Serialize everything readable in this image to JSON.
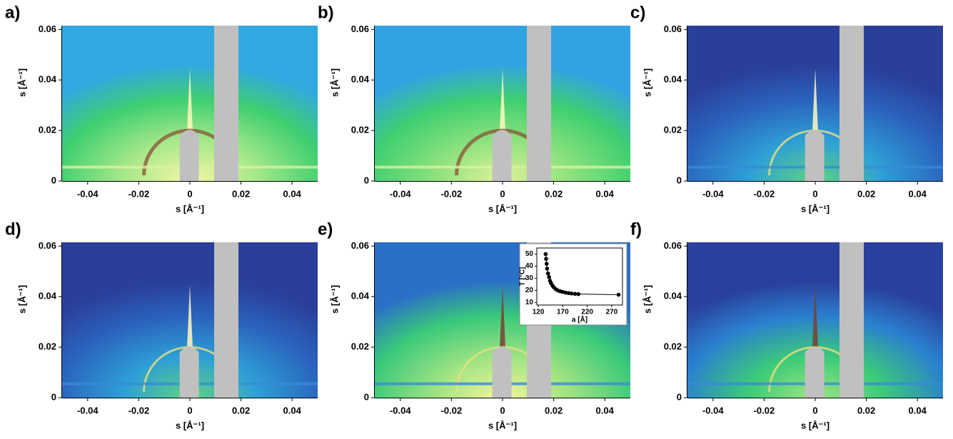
{
  "chart_data": [
    {
      "type": "image",
      "title": "a)",
      "xlabel": "s [Å⁻¹]",
      "ylabel": "s [Å⁻¹]",
      "xlim": [
        -0.05,
        0.05
      ],
      "ylim": [
        0,
        0.0615
      ],
      "xticks": [
        -0.04,
        -0.02,
        0,
        0.02,
        0.04
      ],
      "yticks": [
        0,
        0.02,
        0.04,
        0.06
      ]
    },
    {
      "type": "image",
      "title": "b)",
      "xlabel": "s [Å⁻¹]",
      "ylabel": "s [Å⁻¹]",
      "xlim": [
        -0.05,
        0.05
      ],
      "ylim": [
        0,
        0.0615
      ],
      "xticks": [
        -0.04,
        -0.02,
        0,
        0.02,
        0.04
      ],
      "yticks": [
        0,
        0.02,
        0.04,
        0.06
      ]
    },
    {
      "type": "image",
      "title": "c)",
      "xlabel": "s [Å⁻¹]",
      "ylabel": "s [Å⁻¹]",
      "xlim": [
        -0.05,
        0.05
      ],
      "ylim": [
        0,
        0.0615
      ],
      "xticks": [
        -0.04,
        -0.02,
        0,
        0.02,
        0.04
      ],
      "yticks": [
        0,
        0.02,
        0.04,
        0.06
      ]
    },
    {
      "type": "image",
      "title": "d)",
      "xlabel": "s [Å⁻¹]",
      "ylabel": "s [Å⁻¹]",
      "xlim": [
        -0.05,
        0.05
      ],
      "ylim": [
        0,
        0.0615
      ],
      "xticks": [
        -0.04,
        -0.02,
        0,
        0.02,
        0.04
      ],
      "yticks": [
        0,
        0.02,
        0.04,
        0.06
      ]
    },
    {
      "type": "image",
      "title": "e)",
      "xlabel": "s [Å⁻¹]",
      "ylabel": "s [Å⁻¹]",
      "xlim": [
        -0.05,
        0.05
      ],
      "ylim": [
        0,
        0.0615
      ],
      "xticks": [
        -0.04,
        -0.02,
        0,
        0.02,
        0.04
      ],
      "yticks": [
        0,
        0.02,
        0.04,
        0.06
      ],
      "inset": {
        "type": "scatter",
        "xlabel": "a [Å]",
        "ylabel": "T [°C]",
        "color": "#000000",
        "xlim": [
          117,
          292
        ],
        "ylim": [
          8,
          55
        ],
        "xticks": [
          120,
          170,
          220,
          270
        ],
        "yticks": [
          10,
          20,
          30,
          40,
          50
        ],
        "x": [
          135,
          136,
          137,
          138,
          140,
          142,
          144,
          146,
          149,
          152,
          156,
          160,
          165,
          170,
          176,
          182,
          188,
          195,
          202,
          284
        ],
        "y": [
          50,
          46,
          42,
          38,
          34,
          31,
          28,
          26,
          24,
          22.5,
          21,
          20,
          19.3,
          18.8,
          18.2,
          17.8,
          17.5,
          17.2,
          17,
          16.5
        ]
      }
    },
    {
      "type": "image",
      "title": "f)",
      "xlabel": "s [Å⁻¹]",
      "ylabel": "s [Å⁻¹]",
      "xlim": [
        -0.05,
        0.05
      ],
      "ylim": [
        0,
        0.0615
      ],
      "xticks": [
        -0.04,
        -0.02,
        0,
        0.02,
        0.04
      ],
      "yticks": [
        0,
        0.02,
        0.04,
        0.06
      ]
    }
  ]
}
